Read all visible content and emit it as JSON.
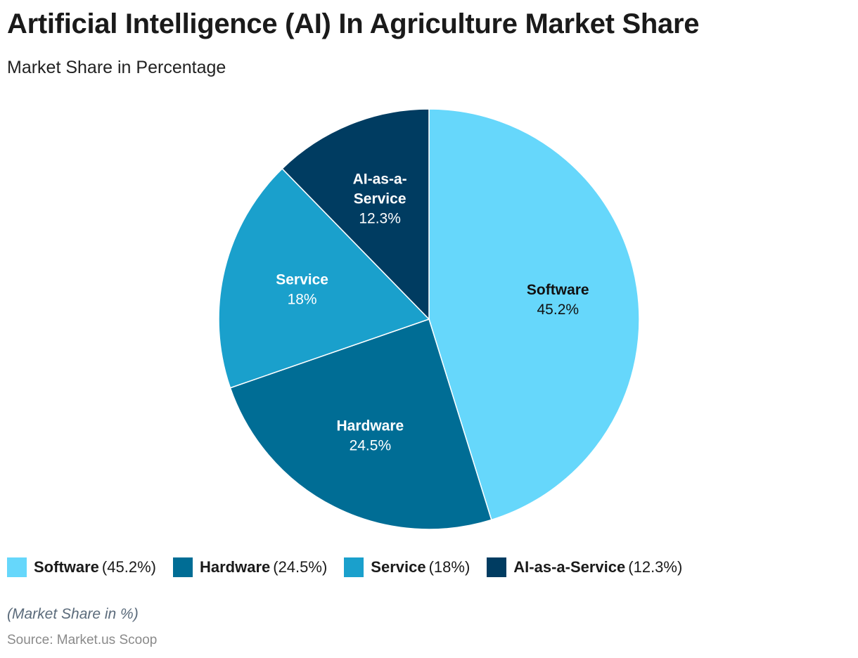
{
  "title": "Artificial Intelligence (AI) In Agriculture Market Share",
  "subtitle": "Market Share in Percentage",
  "note": "(Market Share in %)",
  "source": "Source: Market.us Scoop",
  "chart_data": {
    "type": "pie",
    "title": "Artificial Intelligence (AI) In Agriculture Market Share",
    "subtitle": "Market Share in Percentage",
    "legend_position": "bottom",
    "slices": [
      {
        "name": "Software",
        "value": 45.2,
        "label": "45.2%",
        "legend_value": "(45.2%)",
        "color": "#66d7fb",
        "text_color": "#111111"
      },
      {
        "name": "Hardware",
        "value": 24.5,
        "label": "24.5%",
        "legend_value": "(24.5%)",
        "color": "#006d95",
        "text_color": "#ffffff"
      },
      {
        "name": "Service",
        "value": 18,
        "label": "18%",
        "legend_value": "(18%)",
        "color": "#1aa0cc",
        "text_color": "#ffffff"
      },
      {
        "name": "AI-as-a-Service",
        "value": 12.3,
        "label": "12.3%",
        "legend_value": "(12.3%)",
        "color": "#003c61",
        "text_color": "#ffffff",
        "name_lines": [
          "AI-as-a-",
          "Service"
        ]
      }
    ]
  }
}
